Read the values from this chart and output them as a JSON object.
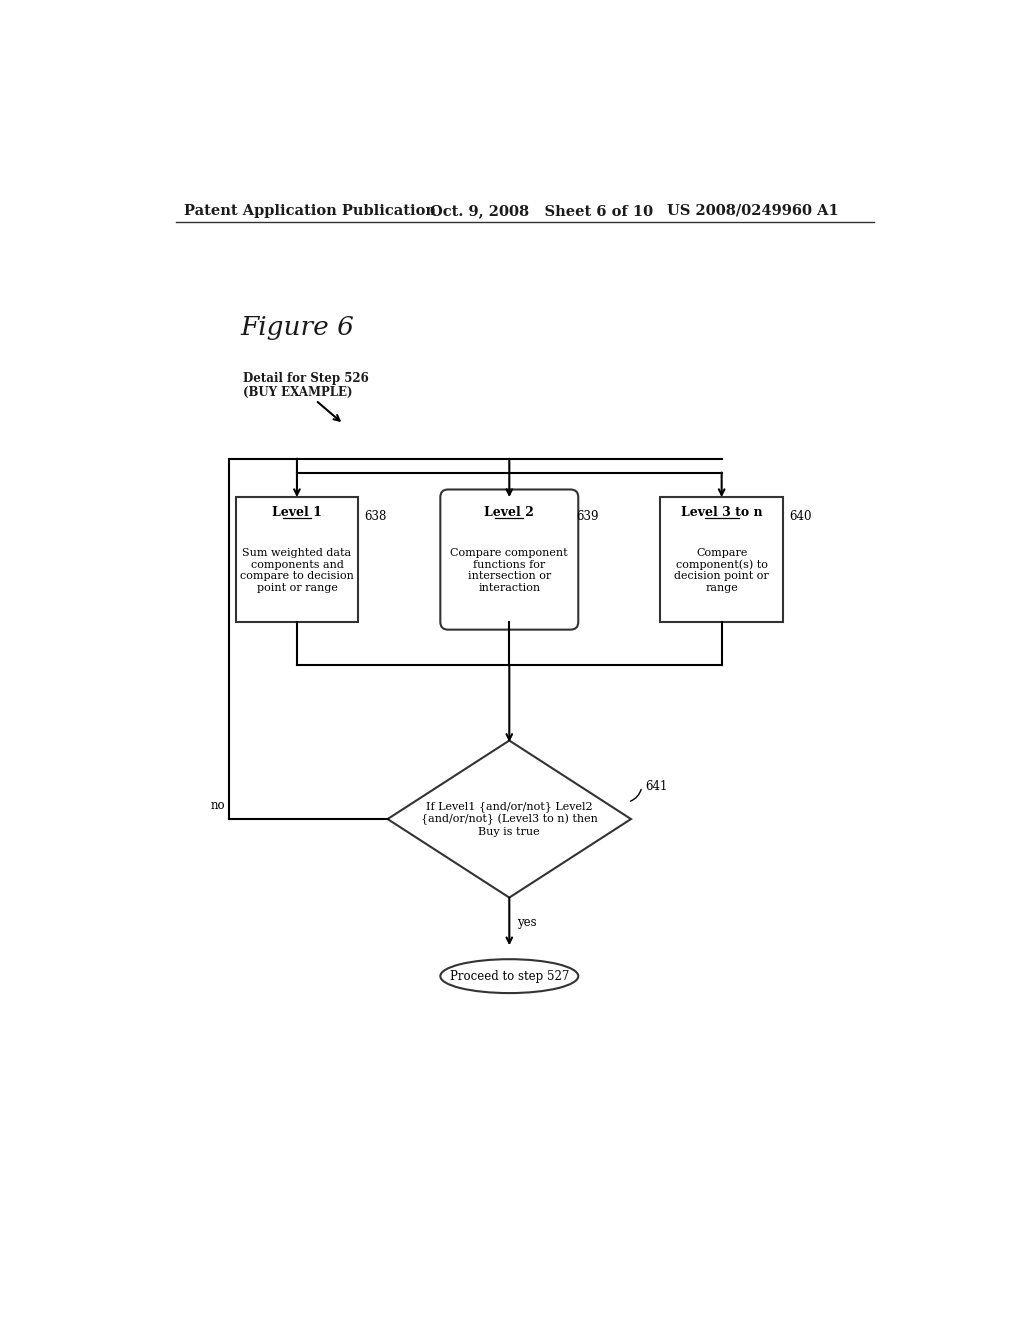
{
  "bg": "#ffffff",
  "header_left": "Patent Application Publication",
  "header_mid": "Oct. 9, 2008   Sheet 6 of 10",
  "header_right": "US 2008/0249960 A1",
  "fig_label": "Figure 6",
  "annot_line1": "Detail for Step 526",
  "annot_line2": "(BUY EXAMPLE)",
  "lbl638": "638",
  "lbl639": "639",
  "lbl640": "640",
  "lbl641": "641",
  "box1_title": "Level 1",
  "box1_body": "Sum weighted data\ncomponents and\ncompare to decision\npoint or range",
  "box2_title": "Level 2",
  "box2_body": "Compare component\nfunctions for\nintersection or\ninteraction",
  "box3_title": "Level 3 to n",
  "box3_body": "Compare\ncomponent(s) to\ndecision point or\nrange",
  "diamond_body": "If Level1 {and/or/not} Level2\n{and/or/not} (Level3 to n) then\nBuy is true",
  "oval_text": "Proceed to step 527",
  "no_text": "no",
  "yes_text": "yes"
}
